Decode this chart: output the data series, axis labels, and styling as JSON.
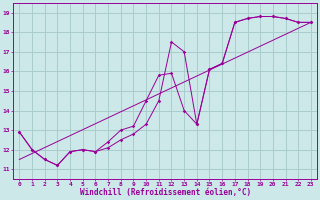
{
  "xlabel": "Windchill (Refroidissement éolien,°C)",
  "bg_color": "#cce8e8",
  "line_color": "#990099",
  "grid_color": "#aacccc",
  "xlim": [
    -0.5,
    23.5
  ],
  "ylim": [
    10.5,
    19.5
  ],
  "yticks": [
    11,
    12,
    13,
    14,
    15,
    16,
    17,
    18,
    19
  ],
  "xticks": [
    0,
    1,
    2,
    3,
    4,
    5,
    6,
    7,
    8,
    9,
    10,
    11,
    12,
    13,
    14,
    15,
    16,
    17,
    18,
    19,
    20,
    21,
    22,
    23
  ],
  "series1_x": [
    0,
    1,
    2,
    3,
    4,
    5,
    6,
    7,
    8,
    9,
    10,
    11,
    12,
    13,
    14,
    15,
    16,
    17,
    18,
    19,
    20,
    21,
    22,
    23
  ],
  "series1_y": [
    12.9,
    12.0,
    11.5,
    11.2,
    11.9,
    12.0,
    11.9,
    12.1,
    12.5,
    12.8,
    13.3,
    14.5,
    17.5,
    17.0,
    13.3,
    16.1,
    16.4,
    18.5,
    18.7,
    18.8,
    18.8,
    18.7,
    18.5,
    18.5
  ],
  "series2_x": [
    0,
    1,
    2,
    3,
    4,
    5,
    6,
    7,
    8,
    9,
    10,
    11,
    12,
    13,
    14,
    15,
    16,
    17,
    18,
    19,
    20,
    21,
    22,
    23
  ],
  "series2_y": [
    12.9,
    12.0,
    11.5,
    11.2,
    11.9,
    12.0,
    11.9,
    12.4,
    13.0,
    13.2,
    14.5,
    15.8,
    15.9,
    14.0,
    13.3,
    16.1,
    16.4,
    18.5,
    18.7,
    18.8,
    18.8,
    18.7,
    18.5,
    18.5
  ],
  "series3_x": [
    0,
    23
  ],
  "series3_y": [
    11.5,
    18.5
  ],
  "tick_fontsize": 4.5,
  "xlabel_fontsize": 5.5
}
